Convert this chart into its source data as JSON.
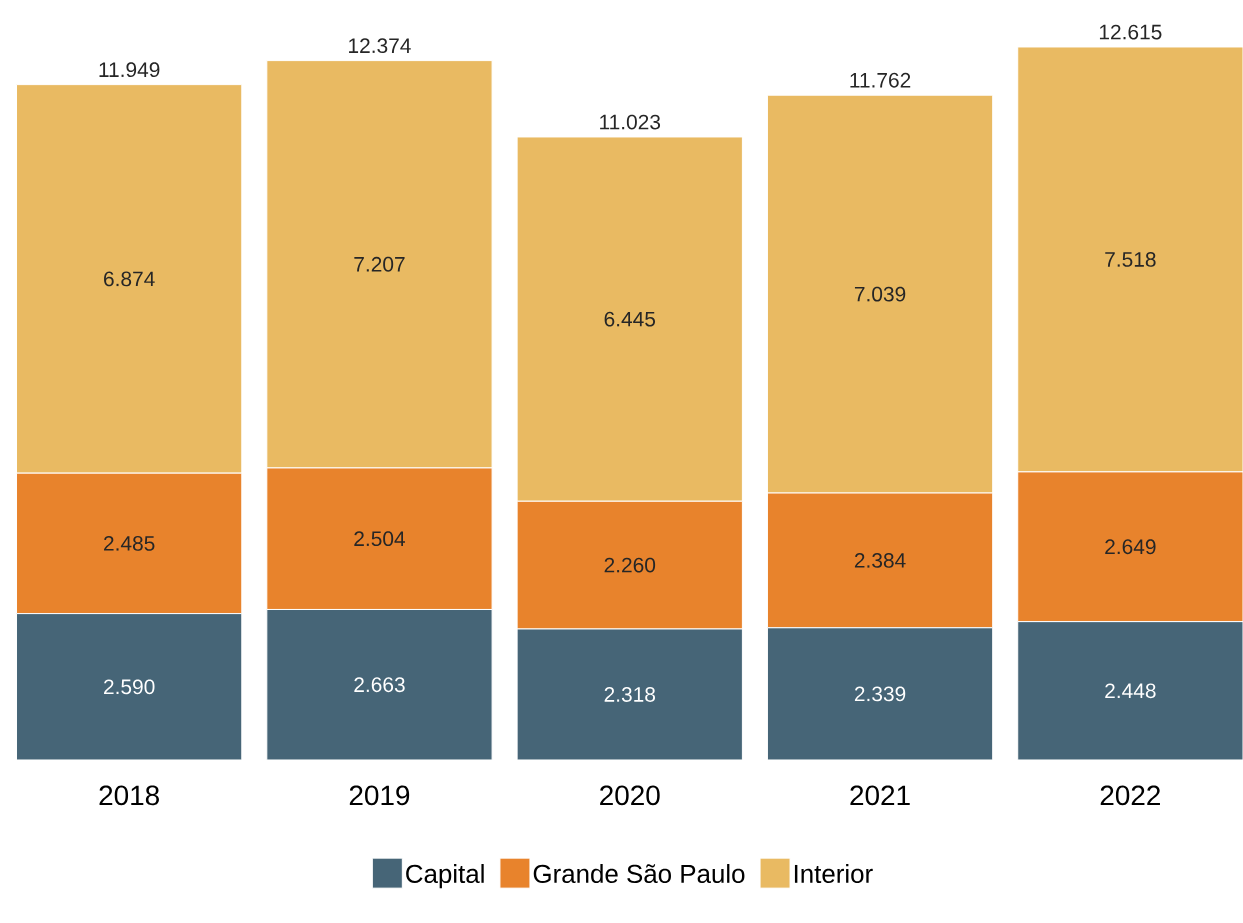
{
  "chart_data": {
    "type": "bar",
    "stacked": true,
    "legend": "bottom",
    "categories": [
      "2018",
      "2019",
      "2020",
      "2021",
      "2022"
    ],
    "series": [
      {
        "name": "Capital",
        "color": "#466577",
        "values": [
          2590,
          2663,
          2318,
          2339,
          2448
        ],
        "value_labels": [
          "2.590",
          "2.663",
          "2.318",
          "2.339",
          "2.448"
        ]
      },
      {
        "name": "Grande São Paulo",
        "color": "#e8832c",
        "values": [
          2485,
          2504,
          2260,
          2384,
          2649
        ],
        "value_labels": [
          "2.485",
          "2.504",
          "2.260",
          "2.384",
          "2.649"
        ]
      },
      {
        "name": "Interior",
        "color": "#e9ba62",
        "values": [
          6874,
          7207,
          6445,
          7039,
          7518
        ],
        "value_labels": [
          "6.874",
          "7.207",
          "6.445",
          "7.039",
          "7.518"
        ]
      }
    ],
    "totals": [
      "11.949",
      "12.374",
      "11.023",
      "11.762",
      "12.615"
    ]
  }
}
